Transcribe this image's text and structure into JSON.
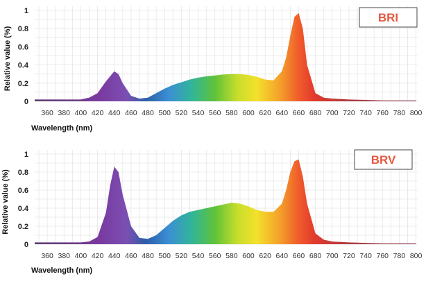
{
  "chart_data": [
    {
      "type": "area",
      "badge": "BRI",
      "xlabel": "Wavelength (nm)",
      "ylabel": "Relative value (%)",
      "x_ticks": [
        "360",
        "380",
        "400",
        "420",
        "440",
        "460",
        "480",
        "500",
        "520",
        "540",
        "560",
        "580",
        "600",
        "620",
        "640",
        "660",
        "680",
        "700",
        "720",
        "740",
        "760",
        "780",
        "800"
      ],
      "y_ticks": [
        "0",
        "0.2",
        "0.4",
        "0.6",
        "0.8",
        "1"
      ],
      "xlim": [
        345,
        802
      ],
      "ylim": [
        0,
        1
      ],
      "series": [
        {
          "name": "BRI",
          "x": [
            345,
            360,
            380,
            400,
            410,
            420,
            430,
            440,
            445,
            450,
            460,
            470,
            480,
            490,
            500,
            510,
            520,
            530,
            540,
            550,
            560,
            570,
            580,
            590,
            600,
            610,
            620,
            630,
            640,
            645,
            650,
            655,
            660,
            665,
            670,
            680,
            690,
            700,
            720,
            740,
            760,
            780,
            800
          ],
          "values": [
            0.02,
            0.02,
            0.02,
            0.02,
            0.04,
            0.09,
            0.22,
            0.33,
            0.3,
            0.2,
            0.06,
            0.03,
            0.04,
            0.09,
            0.14,
            0.18,
            0.21,
            0.24,
            0.26,
            0.275,
            0.285,
            0.295,
            0.3,
            0.3,
            0.29,
            0.27,
            0.24,
            0.23,
            0.33,
            0.48,
            0.72,
            0.93,
            0.97,
            0.8,
            0.4,
            0.09,
            0.04,
            0.03,
            0.02,
            0.015,
            0.01,
            0.01,
            0.01
          ]
        }
      ]
    },
    {
      "type": "area",
      "badge": "BRV",
      "xlabel": "Wavelength (nm)",
      "ylabel": "Relative value (%)",
      "x_ticks": [
        "360",
        "380",
        "400",
        "420",
        "440",
        "460",
        "480",
        "500",
        "520",
        "540",
        "560",
        "580",
        "600",
        "620",
        "640",
        "660",
        "680",
        "700",
        "720",
        "740",
        "760",
        "780",
        "800"
      ],
      "y_ticks": [
        "0",
        "0.2",
        "0.4",
        "0.6",
        "0.8",
        "1"
      ],
      "xlim": [
        345,
        802
      ],
      "ylim": [
        0,
        1
      ],
      "series": [
        {
          "name": "BRV",
          "x": [
            345,
            360,
            380,
            400,
            410,
            420,
            430,
            435,
            440,
            445,
            450,
            460,
            470,
            480,
            490,
            500,
            510,
            520,
            530,
            540,
            550,
            560,
            570,
            580,
            590,
            600,
            610,
            620,
            630,
            640,
            645,
            650,
            655,
            660,
            665,
            670,
            680,
            690,
            700,
            720,
            740,
            760,
            780,
            800
          ],
          "values": [
            0.02,
            0.02,
            0.02,
            0.02,
            0.03,
            0.08,
            0.35,
            0.65,
            0.86,
            0.8,
            0.55,
            0.2,
            0.07,
            0.06,
            0.1,
            0.18,
            0.26,
            0.32,
            0.36,
            0.38,
            0.4,
            0.42,
            0.44,
            0.46,
            0.45,
            0.42,
            0.38,
            0.36,
            0.36,
            0.45,
            0.6,
            0.8,
            0.92,
            0.94,
            0.75,
            0.45,
            0.12,
            0.05,
            0.03,
            0.02,
            0.015,
            0.01,
            0.01,
            0.01
          ]
        }
      ]
    }
  ]
}
